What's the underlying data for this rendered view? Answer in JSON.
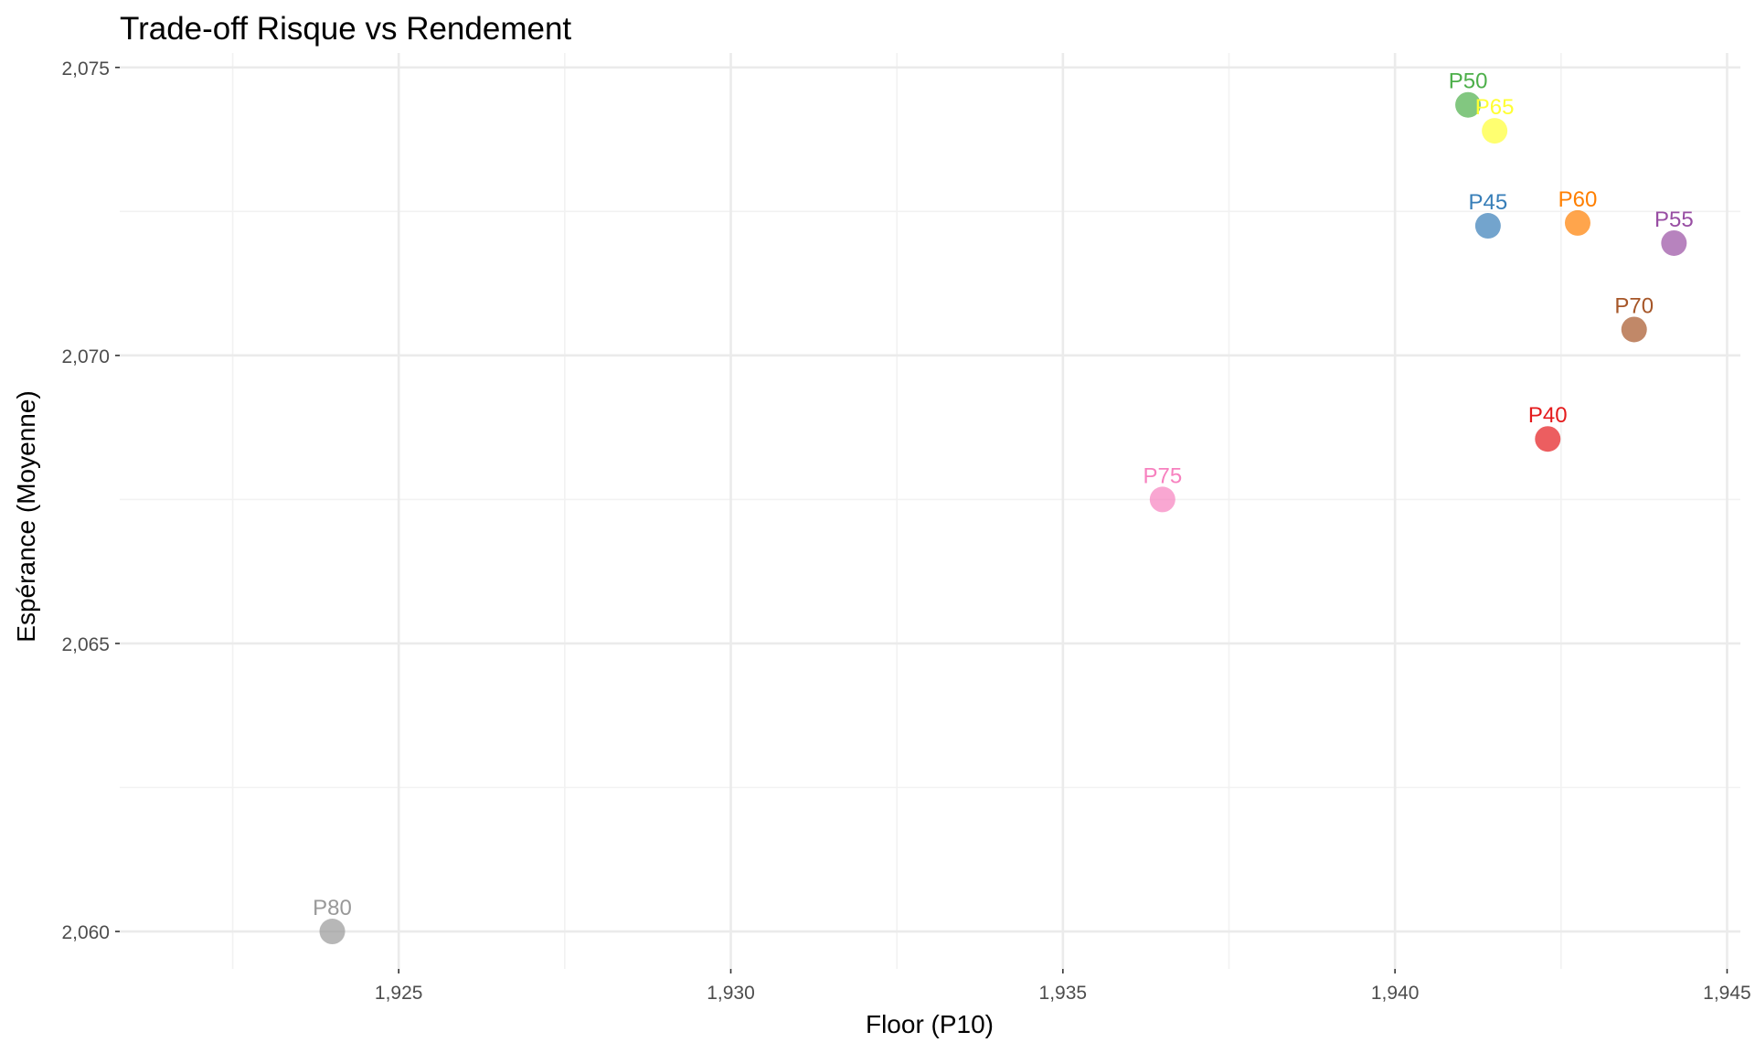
{
  "chart_data": {
    "type": "scatter",
    "title": "Trade-off Risque vs Rendement",
    "xlabel": "Floor (P10)",
    "ylabel": "Espérance (Moyenne)",
    "xlim": [
      1920.8,
      1945.2
    ],
    "ylim": [
      2059.35,
      2075.25
    ],
    "x_ticks": [
      1925,
      1930,
      1935,
      1940,
      1945
    ],
    "x_tick_labels": [
      "1,925",
      "1,930",
      "1,935",
      "1,940",
      "1,945"
    ],
    "x_minor_ticks": [
      1922.5,
      1927.5,
      1932.5,
      1937.5,
      1942.5
    ],
    "y_ticks": [
      2060,
      2065,
      2070,
      2075
    ],
    "y_tick_labels": [
      "2,060",
      "2,065",
      "2,070",
      "2,075"
    ],
    "y_minor_ticks": [
      2062.5,
      2067.5,
      2072.5
    ],
    "grid": true,
    "legend": "none",
    "points": [
      {
        "label": "P40",
        "x": 1942.3,
        "y": 2068.55,
        "color": "#e41a1c"
      },
      {
        "label": "P45",
        "x": 1941.4,
        "y": 2072.25,
        "color": "#377eb8"
      },
      {
        "label": "P50",
        "x": 1941.1,
        "y": 2074.35,
        "color": "#4daf4a"
      },
      {
        "label": "P55",
        "x": 1944.2,
        "y": 2071.95,
        "color": "#984ea3"
      },
      {
        "label": "P60",
        "x": 1942.75,
        "y": 2072.3,
        "color": "#ff7f00"
      },
      {
        "label": "P65",
        "x": 1941.5,
        "y": 2073.9,
        "color": "#ffff33"
      },
      {
        "label": "P70",
        "x": 1943.6,
        "y": 2070.45,
        "color": "#a65628"
      },
      {
        "label": "P75",
        "x": 1936.5,
        "y": 2067.5,
        "color": "#f781bf"
      },
      {
        "label": "P80",
        "x": 1924.0,
        "y": 2060.0,
        "color": "#999999"
      }
    ]
  }
}
